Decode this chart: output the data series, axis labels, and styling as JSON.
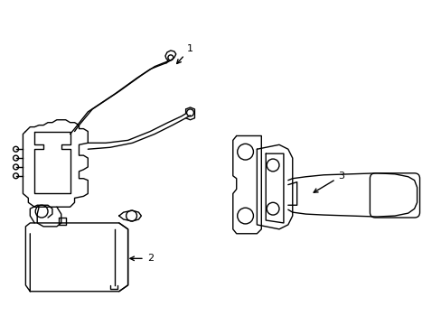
{
  "background_color": "#ffffff",
  "line_color": "#000000",
  "line_width": 1.0,
  "label_fontsize": 8,
  "fig_width": 4.89,
  "fig_height": 3.6,
  "dpi": 100
}
